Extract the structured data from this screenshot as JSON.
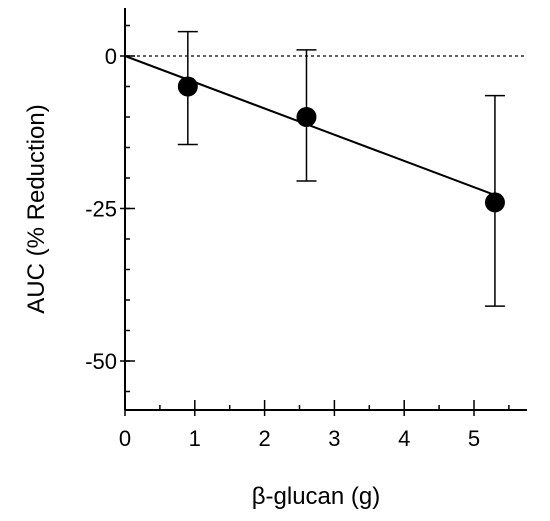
{
  "chart_data": {
    "type": "scatter",
    "xlabel": "β-glucan (g)",
    "ylabel": "AUC (% Reduction)",
    "xlim": [
      0,
      5.8
    ],
    "ylim": [
      -57,
      8
    ],
    "x_ticks": [
      0,
      1,
      2,
      3,
      4,
      5
    ],
    "x_minor_step": 0.5,
    "y_ticks": [
      0,
      -25,
      -50
    ],
    "y_minor_step": 5,
    "grid": false,
    "legend": "none",
    "colors": {
      "marker": "#000000",
      "line": "#000000",
      "reference": "#000000"
    },
    "reference_line": {
      "y": 0,
      "style": "dashed"
    },
    "series": [
      {
        "points": [
          {
            "x": 0.9,
            "y": -5,
            "err_low": -14.5,
            "err_high": 4
          },
          {
            "x": 2.6,
            "y": -10,
            "err_low": -20.5,
            "err_high": 1
          },
          {
            "x": 5.3,
            "y": -24,
            "err_low": -41,
            "err_high": -6.5
          }
        ]
      }
    ],
    "fit_line": {
      "x": [
        0,
        5.3
      ],
      "y": [
        0,
        -22.8
      ]
    }
  }
}
